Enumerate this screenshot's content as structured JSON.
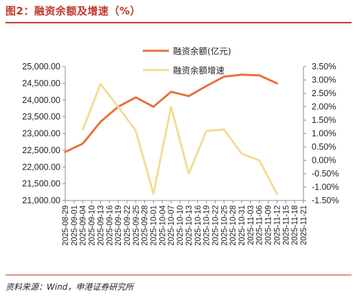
{
  "header": {
    "title": "图2：融资余额及增速（%）"
  },
  "footer": {
    "source": "资料来源：Wind，申港证券研究所"
  },
  "chart_data": {
    "type": "line",
    "title": "",
    "x": [
      "2025-08-29",
      "2025-09-01",
      "2025-09-04",
      "2025-09-10",
      "2025-09-13",
      "2025-09-16",
      "2025-09-19",
      "2025-09-22",
      "2025-09-25",
      "2025-09-28",
      "2025-10-01",
      "2025-10-04",
      "2025-10-07",
      "2025-10-10",
      "2025-10-13",
      "2025-10-16",
      "2025-10-19",
      "2025-10-22",
      "2025-10-25",
      "2025-10-28",
      "2025-10-31",
      "2025-11-03",
      "2025-11-06",
      "2025-11-09",
      "2025-11-12",
      "2025-11-15",
      "2025-11-18",
      "2025-11-21"
    ],
    "series": [
      {
        "name": "融资余额(亿元)",
        "axis": "left",
        "color": "#E8703A",
        "values": [
          22450,
          null,
          22700,
          null,
          23350,
          null,
          23800,
          null,
          24080,
          null,
          23800,
          null,
          24250,
          null,
          24120,
          null,
          24420,
          null,
          24700,
          null,
          24760,
          null,
          24740,
          null,
          24500,
          null,
          null,
          null
        ]
      },
      {
        "name": "融资余额增速",
        "axis": "right",
        "color": "#F3DC93",
        "values": [
          null,
          null,
          1.15,
          null,
          2.85,
          null,
          2.0,
          null,
          1.1,
          null,
          -1.25,
          null,
          2.0,
          null,
          -0.5,
          null,
          1.1,
          null,
          1.15,
          null,
          0.25,
          null,
          0.0,
          null,
          -1.25,
          null,
          null,
          null
        ]
      }
    ],
    "x_tick_labels": [
      "2025-08-29",
      "2025-09-01",
      "2025-09-04",
      "2025-09-10",
      "2025-09-13",
      "2025-09-16",
      "2025-09-19",
      "2025-09-22",
      "2025-09-25",
      "2025-09-28",
      "2025-10-01",
      "2025-10-04",
      "2025-10-07",
      "2025-10-10",
      "2025-10-13",
      "2025-10-16",
      "2025-10-19",
      "2025-10-22",
      "2025-10-25",
      "2025-10-28",
      "2025-10-31",
      "2025-11-03",
      "2025-11-06",
      "2025-11-09",
      "2025-11-12",
      "2025-11-15",
      "2025-11-18",
      "2025-11-21"
    ],
    "y_left": {
      "ticks": [
        "21,000.00",
        "21,500.00",
        "22,000.00",
        "22,500.00",
        "23,000.00",
        "23,500.00",
        "24,000.00",
        "24,500.00",
        "25,000.00"
      ],
      "ylim": [
        21000,
        25000
      ]
    },
    "y_right": {
      "ticks": [
        "-1.50%",
        "-1.00%",
        "-0.50%",
        "0.00%",
        "0.50%",
        "1.00%",
        "1.50%",
        "2.00%",
        "2.50%",
        "3.00%",
        "3.50%"
      ],
      "ylim": [
        -1.5,
        3.5
      ]
    },
    "legend": {
      "placement": "top-right",
      "entries": [
        "融资余额(亿元)",
        "融资余额增速"
      ]
    },
    "grid": false
  }
}
